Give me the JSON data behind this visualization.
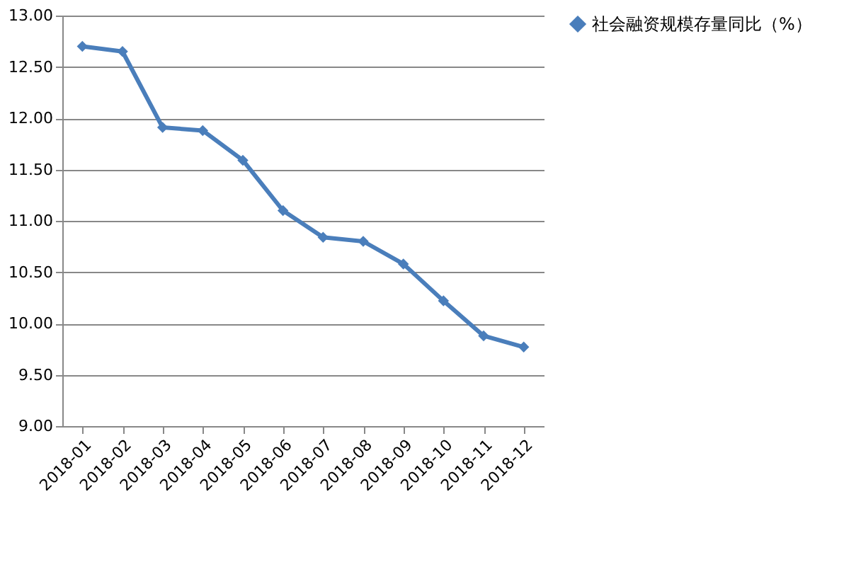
{
  "chart_data": {
    "type": "line",
    "categories": [
      "2018-01",
      "2018-02",
      "2018-03",
      "2018-04",
      "2018-05",
      "2018-06",
      "2018-07",
      "2018-08",
      "2018-09",
      "2018-10",
      "2018-11",
      "2018-12"
    ],
    "series": [
      {
        "name": "社会融资规模存量同比（%）",
        "color": "#4a7ebb",
        "values": [
          12.7,
          12.65,
          11.91,
          11.88,
          11.59,
          11.1,
          10.84,
          10.8,
          10.58,
          10.22,
          9.88,
          9.77
        ]
      }
    ],
    "ylim": [
      9,
      13
    ],
    "yticks": [
      {
        "value": 9,
        "label": "9.00"
      },
      {
        "value": 9.5,
        "label": "9.50"
      },
      {
        "value": 10,
        "label": "10.00"
      },
      {
        "value": 10.5,
        "label": "10.50"
      },
      {
        "value": 11,
        "label": "11.00"
      },
      {
        "value": 11.5,
        "label": "11.50"
      },
      {
        "value": 12,
        "label": "12.00"
      },
      {
        "value": 12.5,
        "label": "12.50"
      },
      {
        "value": 13,
        "label": "13.00"
      }
    ],
    "grid": "y",
    "legend": "right",
    "marker": "diamond",
    "line_style": "solid"
  }
}
